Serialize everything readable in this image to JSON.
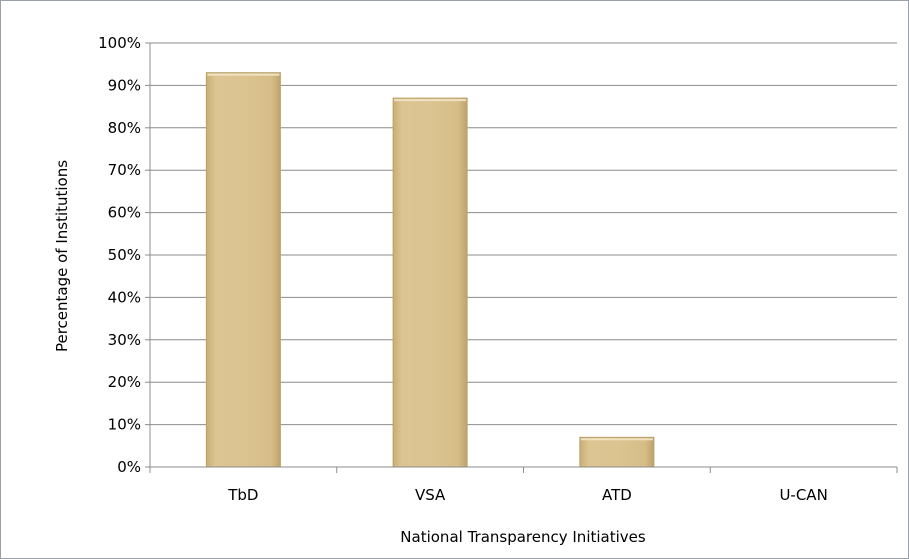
{
  "chart_data": {
    "type": "bar",
    "xlabel": "National Transparency Initiatives",
    "ylabel": "Percentage of Institutions",
    "categories": [
      "TbD",
      "VSA",
      "ATD",
      "U-CAN"
    ],
    "values": [
      93,
      87,
      7,
      0
    ],
    "ylim": [
      0,
      100
    ],
    "yticks": [
      "0%",
      "10%",
      "20%",
      "30%",
      "40%",
      "50%",
      "60%",
      "70%",
      "80%",
      "90%",
      "100%"
    ],
    "grid": true,
    "legend": "none",
    "colors": {
      "bar_fill": "#d9c08c",
      "bar_edge": "#b8a06a",
      "grid": "#8c8c8c"
    }
  }
}
